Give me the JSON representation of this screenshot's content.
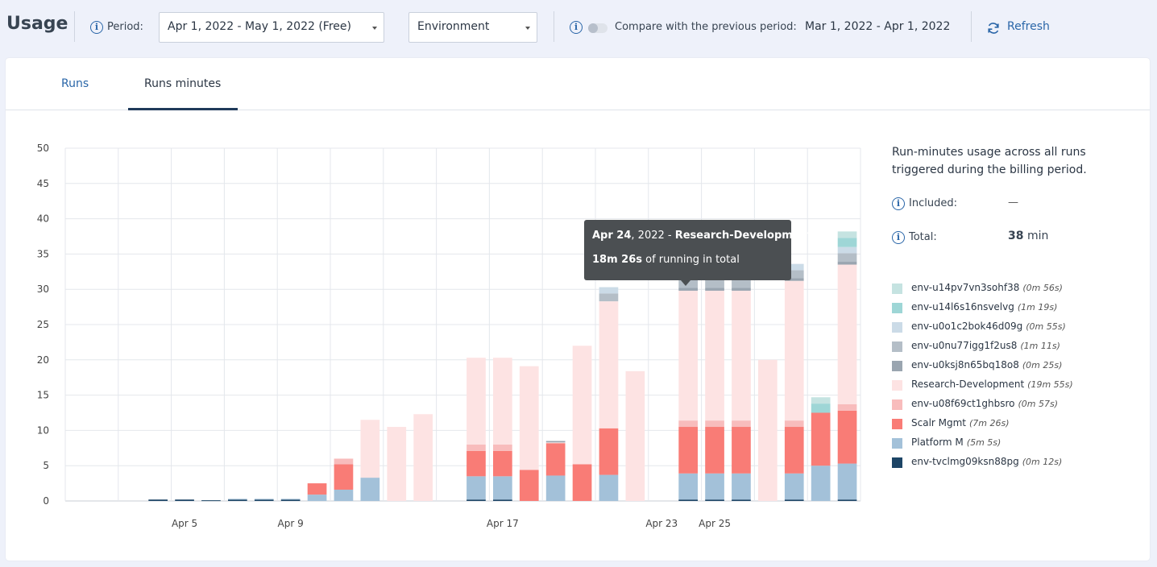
{
  "header": {
    "title": "Usage",
    "period_label": "Period:",
    "period_value": "Apr 1, 2022 - May 1, 2022 (Free)",
    "group_by_value": "Environment",
    "compare_label": "Compare with the previous period:",
    "compare_period": "Mar 1, 2022 - Apr 1, 2022",
    "refresh_label": "Refresh"
  },
  "tabs": [
    {
      "label": "Runs",
      "active": false
    },
    {
      "label": "Runs minutes",
      "active": true
    }
  ],
  "summary": {
    "description": "Run-minutes usage across all runs triggered during the billing period.",
    "included_label": "Included:",
    "included_value": "—",
    "total_label": "Total:",
    "total_value": "38",
    "total_unit": "min"
  },
  "tooltip": {
    "date": "Apr 24",
    "year": ", 2022",
    "sep": " - ",
    "series": "Research-Development",
    "value": "18m 26s",
    "suffix": " of running in total"
  },
  "chart_data": {
    "type": "bar",
    "stacked": true,
    "ylim": [
      0,
      50
    ],
    "yticks": [
      0,
      5,
      10,
      15,
      20,
      25,
      30,
      35,
      40,
      45,
      50
    ],
    "categories": [
      "Apr 1",
      "Apr 2",
      "Apr 3",
      "Apr 4",
      "Apr 5",
      "Apr 6",
      "Apr 7",
      "Apr 8",
      "Apr 9",
      "Apr 10",
      "Apr 11",
      "Apr 12",
      "Apr 13",
      "Apr 14",
      "Apr 15",
      "Apr 16",
      "Apr 17",
      "Apr 18",
      "Apr 19",
      "Apr 20",
      "Apr 21",
      "Apr 22",
      "Apr 23",
      "Apr 24",
      "Apr 25",
      "Apr 26",
      "Apr 27",
      "Apr 28",
      "Apr 29",
      "Apr 30"
    ],
    "xtick_labels": {
      "Apr 5": "Apr 5",
      "Apr 9": "Apr 9",
      "Apr 17": "Apr 17",
      "Apr 23": "Apr 23",
      "Apr 25": "Apr 25"
    },
    "grid": true,
    "legend_position": "right",
    "series": [
      {
        "name": "env-tvclmg09ksn88pg",
        "duration": "(0m 12s)",
        "color": "#1d4566",
        "values": [
          0,
          0,
          0,
          0.2,
          0.2,
          0.1,
          0.2,
          0.2,
          0.2,
          0,
          0,
          0,
          0,
          0,
          0,
          0.2,
          0.2,
          0,
          0,
          0,
          0,
          0,
          0,
          0.2,
          0.2,
          0.2,
          0,
          0.2,
          0,
          0.2
        ]
      },
      {
        "name": "Platform M",
        "duration": "(5m 5s)",
        "color": "#a3c1d9",
        "values": [
          0,
          0,
          0,
          0,
          0,
          0,
          0.1,
          0.1,
          0.1,
          0.9,
          1.6,
          3.3,
          0,
          0,
          0,
          3.3,
          3.3,
          0,
          3.6,
          0,
          3.7,
          0,
          0,
          3.7,
          3.7,
          3.7,
          0,
          3.7,
          5.0,
          5.1
        ]
      },
      {
        "name": "Scalr Mgmt",
        "duration": "(7m 26s)",
        "color": "#f97c76",
        "values": [
          0,
          0,
          0,
          0,
          0,
          0,
          0,
          0,
          0,
          1.6,
          3.6,
          0,
          0,
          0,
          0,
          3.6,
          3.6,
          4.4,
          4.6,
          5.2,
          6.6,
          0,
          0,
          6.6,
          6.6,
          6.6,
          0,
          6.6,
          7.5,
          7.5
        ]
      },
      {
        "name": "env-u08f69ct1ghbsro",
        "duration": "(0m 57s)",
        "color": "#f8bcbc",
        "values": [
          0,
          0,
          0,
          0,
          0,
          0,
          0,
          0,
          0,
          0,
          0.8,
          0,
          0,
          0,
          0,
          0.9,
          0.9,
          0,
          0,
          0,
          0,
          0,
          0,
          0.9,
          0.9,
          0.9,
          0,
          0.9,
          0,
          0.9
        ]
      },
      {
        "name": "Research-Development",
        "duration": "(19m 55s)",
        "color": "#fde3e3",
        "values": [
          0,
          0,
          0,
          0,
          0,
          0,
          0,
          0,
          0,
          0,
          0,
          8.2,
          10.5,
          12.3,
          0,
          12.3,
          12.3,
          14.7,
          0.1,
          16.8,
          18.0,
          18.4,
          0,
          18.4,
          18.4,
          18.4,
          20.0,
          19.8,
          0,
          19.8
        ]
      },
      {
        "name": "env-u0ksj8n65bq18o8",
        "duration": "(0m 25s)",
        "color": "#9aa5b0",
        "values": [
          0,
          0,
          0,
          0,
          0,
          0,
          0,
          0,
          0,
          0,
          0,
          0,
          0,
          0,
          0,
          0,
          0,
          0,
          0.2,
          0,
          0,
          0,
          0,
          0.4,
          0.4,
          0.4,
          0,
          0.4,
          0,
          0.4
        ]
      },
      {
        "name": "env-u0nu77igg1f2us8",
        "duration": "(1m 11s)",
        "color": "#b4bec7",
        "values": [
          0,
          0,
          0,
          0,
          0,
          0,
          0,
          0,
          0,
          0,
          0,
          0,
          0,
          0,
          0,
          0,
          0,
          0,
          0,
          0,
          1.1,
          0,
          0,
          1.1,
          1.1,
          1.1,
          0,
          1.1,
          0,
          1.2
        ]
      },
      {
        "name": "env-u0o1c2bok46d09g",
        "duration": "(0m 55s)",
        "color": "#cbdbe7",
        "values": [
          0,
          0,
          0,
          0,
          0,
          0,
          0,
          0,
          0,
          0,
          0,
          0,
          0,
          0,
          0,
          0,
          0,
          0,
          0,
          0,
          0.9,
          0,
          0,
          0.9,
          0.9,
          0.9,
          0,
          0.9,
          0,
          0.9
        ]
      },
      {
        "name": "env-u14l6s16nsvelvg",
        "duration": "(1m 19s)",
        "color": "#9ed6d6",
        "values": [
          0,
          0,
          0,
          0,
          0,
          0,
          0,
          0,
          0,
          0,
          0,
          0,
          0,
          0,
          0,
          0,
          0,
          0,
          0,
          0,
          0,
          0,
          0,
          0,
          0,
          0,
          0,
          0,
          1.3,
          1.3
        ]
      },
      {
        "name": "env-u14pv7vn3sohf38",
        "duration": "(0m 56s)",
        "color": "#c5e3e1",
        "values": [
          0,
          0,
          0,
          0,
          0,
          0,
          0,
          0,
          0,
          0,
          0,
          0,
          0,
          0,
          0,
          0,
          0,
          0,
          0,
          0,
          0,
          0,
          0,
          0,
          0,
          0,
          0,
          0,
          0.9,
          0.9
        ]
      }
    ]
  },
  "legend_order": [
    9,
    8,
    7,
    6,
    5,
    4,
    3,
    2,
    1,
    0
  ]
}
